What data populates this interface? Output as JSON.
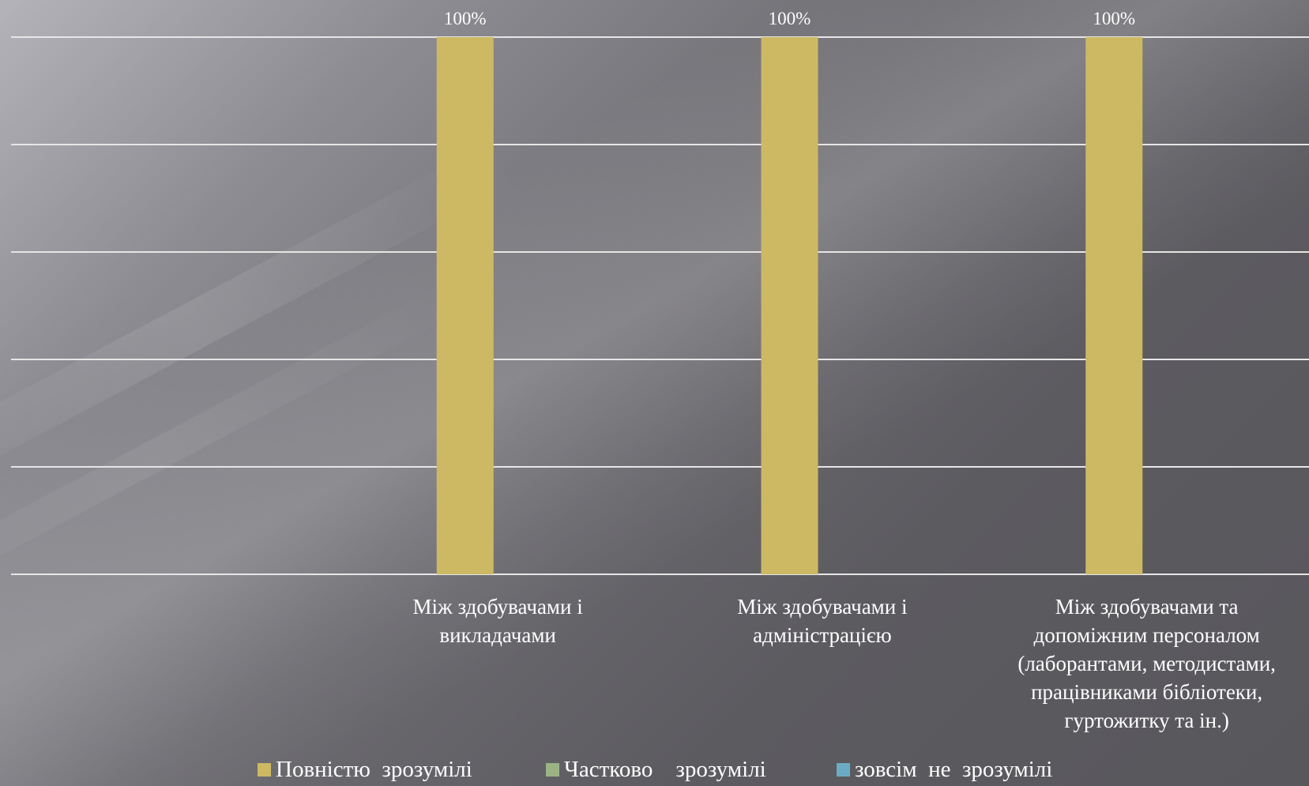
{
  "chart_data": {
    "type": "bar",
    "categories": [
      "Між здобувачами і\nвикладачами",
      "Між здобувачами і\nадміністрацією",
      "Між здобувачами та\nдопоміжним персоналом\n(лаборантами, методистами,\nпрацівниками бібліотеки,\nгуртожитку та ін.)"
    ],
    "series": [
      {
        "name": "Повністю  зрозумілі",
        "color": "#cdb963",
        "values": [
          100,
          100,
          100
        ],
        "labels": [
          "100%",
          "100%",
          "100%"
        ]
      },
      {
        "name": "Частково    зрозумілі",
        "color": "#9bb384",
        "values": [
          0,
          0,
          0
        ]
      },
      {
        "name": "зовсім  не  зрозумілі",
        "color": "#6aacc4",
        "values": [
          0,
          0,
          0
        ]
      }
    ],
    "ylim": [
      0,
      100
    ],
    "grid": true,
    "legend_position": "bottom"
  }
}
